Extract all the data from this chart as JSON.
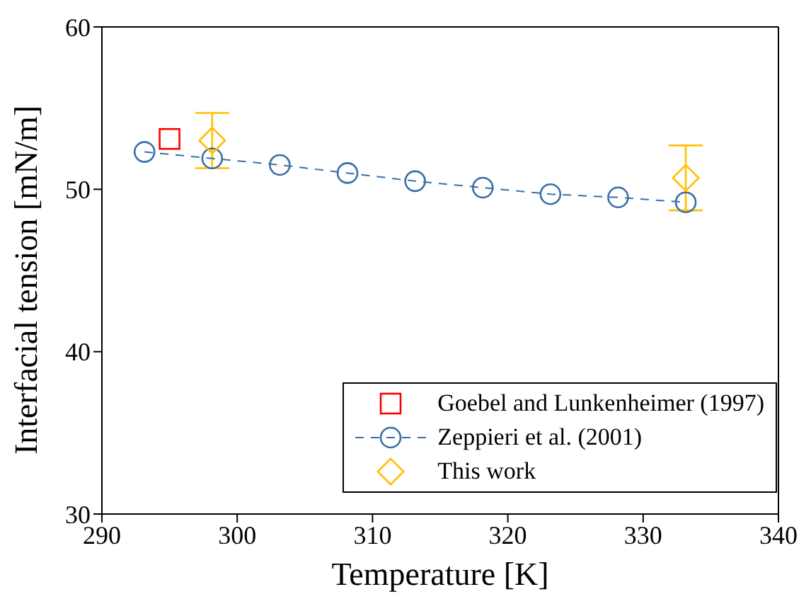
{
  "chart_data": {
    "type": "scatter",
    "xlabel": "Temperature [K]",
    "ylabel": "Interfacial tension [mN/m]",
    "xlim": [
      290,
      340
    ],
    "xticks": [
      290,
      300,
      310,
      320,
      330,
      340
    ],
    "ylim": [
      30,
      60
    ],
    "yticks": [
      30,
      40,
      50,
      60
    ],
    "grid": false,
    "legend": "bottom right",
    "series": [
      {
        "name": "Goebel and Lunkenheimer (1997)",
        "type": "scatter",
        "marker": "square",
        "color": "#ff0000",
        "x": [
          295.0
        ],
        "values": [
          53.1
        ]
      },
      {
        "name": "Zeppieri et al. (2001)",
        "type": "line",
        "marker": "circle",
        "line_style": "dashed",
        "color": "#3a6ea8",
        "x": [
          293.15,
          298.15,
          303.15,
          308.15,
          313.15,
          318.15,
          323.15,
          328.15,
          333.15
        ],
        "values": [
          52.3,
          51.9,
          51.5,
          51.0,
          50.5,
          50.1,
          49.7,
          49.5,
          49.2
        ]
      },
      {
        "name": "This work",
        "type": "scatter",
        "marker": "diamond",
        "color": "#ffc000",
        "x": [
          298.15,
          333.15
        ],
        "values": [
          53.0,
          50.7
        ],
        "errors": [
          1.7,
          2.0
        ]
      }
    ]
  }
}
